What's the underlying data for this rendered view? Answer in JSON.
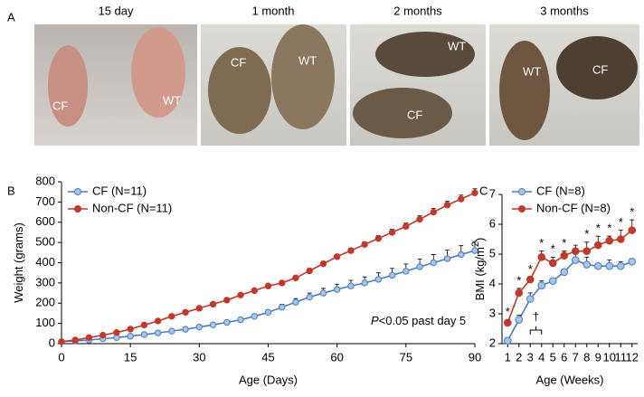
{
  "panel_a": {
    "label": "A",
    "photos": [
      {
        "caption": "15 day",
        "labels": [
          "CF",
          "WT"
        ]
      },
      {
        "caption": "1 month",
        "labels": [
          "CF",
          "WT"
        ]
      },
      {
        "caption": "2 months",
        "labels": [
          "WT",
          "CF"
        ]
      },
      {
        "caption": "3 months",
        "labels": [
          "WT",
          "CF"
        ]
      }
    ]
  },
  "chart_data": [
    {
      "type": "line",
      "panel_label": "B",
      "xlabel": "Age (Days)",
      "ylabel": [
        "Weight (grams)"
      ],
      "xlim": [
        0,
        90
      ],
      "ylim": [
        0,
        800
      ],
      "xticks": [
        0,
        15,
        30,
        45,
        60,
        75,
        90
      ],
      "yticks": [
        0,
        100,
        200,
        300,
        400,
        500,
        600,
        700,
        800
      ],
      "legend": "upper left",
      "annotation": [
        "P",
        "<0.05 past day 5"
      ],
      "x": [
        0,
        3,
        6,
        9,
        12,
        15,
        18,
        21,
        24,
        27,
        30,
        33,
        36,
        39,
        42,
        45,
        48,
        51,
        54,
        57,
        60,
        63,
        66,
        69,
        72,
        75,
        78,
        81,
        84,
        87,
        90
      ],
      "series": [
        {
          "name": "CF (N=11)",
          "color": "#4a7cc0",
          "fill": "#a9c4e8",
          "values": [
            10,
            13,
            18,
            24,
            30,
            37,
            45,
            53,
            62,
            71,
            82,
            93,
            105,
            118,
            135,
            155,
            180,
            205,
            230,
            250,
            268,
            285,
            300,
            318,
            338,
            358,
            380,
            400,
            420,
            440,
            460
          ],
          "errors": [
            2,
            2,
            3,
            3,
            4,
            4,
            5,
            5,
            6,
            6,
            7,
            7,
            8,
            9,
            10,
            12,
            15,
            18,
            20,
            23,
            26,
            28,
            30,
            32,
            34,
            36,
            38,
            40,
            42,
            44,
            45
          ]
        },
        {
          "name": "Non-CF (N=11)",
          "color": "#c0392b",
          "fill": "#c0392b",
          "values": [
            10,
            18,
            30,
            42,
            55,
            72,
            92,
            112,
            135,
            155,
            175,
            195,
            215,
            240,
            262,
            285,
            300,
            325,
            360,
            395,
            430,
            460,
            490,
            520,
            550,
            580,
            615,
            650,
            685,
            715,
            745
          ],
          "errors": [
            2,
            2,
            3,
            3,
            4,
            4,
            5,
            5,
            6,
            6,
            7,
            7,
            8,
            8,
            9,
            9,
            10,
            10,
            11,
            11,
            12,
            12,
            13,
            14,
            15,
            16,
            17,
            18,
            18,
            19,
            20
          ]
        }
      ]
    },
    {
      "type": "line",
      "panel_label": "C",
      "xlabel": "Age (Weeks)",
      "ylabel": [
        "BMI (kg/m",
        "2",
        ")"
      ],
      "xlim": [
        0.5,
        12.5
      ],
      "ylim": [
        2,
        7
      ],
      "xticks": [
        1,
        2,
        3,
        4,
        5,
        6,
        7,
        8,
        9,
        10,
        11,
        12
      ],
      "yticks": [
        2,
        3,
        4,
        5,
        6,
        7
      ],
      "legend": "upper left",
      "x": [
        1,
        2,
        3,
        4,
        5,
        6,
        7,
        8,
        9,
        10,
        11,
        12
      ],
      "significance": [
        "*",
        "*",
        "*",
        "*",
        "*",
        "*",
        null,
        "*",
        "*",
        "*",
        "*",
        "*"
      ],
      "dagger": {
        "label": "†",
        "x": [
          3,
          4
        ]
      },
      "series": [
        {
          "name": "CF (N=8)",
          "color": "#4a7cc0",
          "fill": "#a9c4e8",
          "values": [
            2.1,
            2.8,
            3.5,
            3.95,
            4.1,
            4.4,
            4.8,
            4.65,
            4.6,
            4.6,
            4.6,
            4.75
          ],
          "errors": [
            0.1,
            0.15,
            0.2,
            0.15,
            0.08,
            0.1,
            0.2,
            0.25,
            0.1,
            0.2,
            0.15,
            0.1
          ]
        },
        {
          "name": "Non-CF (N=8)",
          "color": "#c0392b",
          "fill": "#c0392b",
          "values": [
            2.7,
            3.7,
            4.15,
            4.9,
            4.7,
            4.95,
            5.1,
            5.1,
            5.3,
            5.45,
            5.5,
            5.8
          ],
          "errors": [
            0.1,
            0.15,
            0.08,
            0.2,
            0.2,
            0.15,
            0.2,
            0.3,
            0.3,
            0.15,
            0.3,
            0.35
          ]
        }
      ]
    }
  ]
}
